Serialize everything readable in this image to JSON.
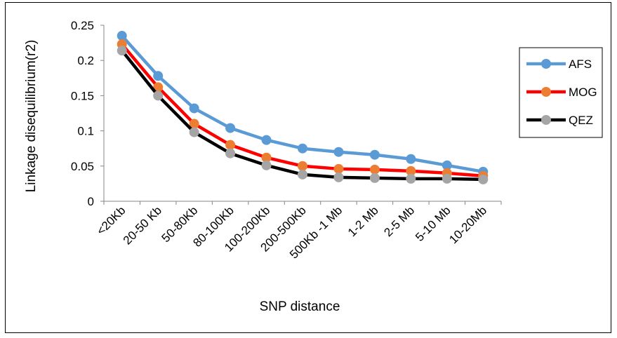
{
  "chart_data": {
    "type": "line",
    "title": "",
    "xlabel": "SNP distance",
    "ylabel": "Linkage disequilibrium(r2)",
    "categories": [
      "<20Kb",
      "20-50 Kb",
      "50-80Kb",
      "80-100Kb",
      "100-200Kb",
      "200-500Kb",
      "500Kb -1 Mb",
      "1-2 Mb",
      "2-5 Mb",
      "5-10 Mb",
      "10-20Mb"
    ],
    "ylim": [
      0,
      0.25
    ],
    "yticks": [
      "0",
      "0.05",
      "0.1",
      "0.15",
      "0.2",
      "0.25"
    ],
    "grid": false,
    "legend_position": "right",
    "series": [
      {
        "name": "AFS",
        "color": "#5B9BD5",
        "values": [
          0.235,
          0.178,
          0.132,
          0.104,
          0.087,
          0.075,
          0.07,
          0.066,
          0.06,
          0.051,
          0.042
        ]
      },
      {
        "name": "MOG",
        "color": "#FF0000",
        "marker_color": "#ED7D31",
        "values": [
          0.223,
          0.162,
          0.11,
          0.08,
          0.062,
          0.05,
          0.046,
          0.045,
          0.043,
          0.04,
          0.036
        ]
      },
      {
        "name": "QEZ",
        "color": "#000000",
        "marker_color": "#A5A5A5",
        "values": [
          0.214,
          0.15,
          0.098,
          0.068,
          0.051,
          0.038,
          0.034,
          0.033,
          0.032,
          0.032,
          0.031
        ]
      }
    ]
  }
}
